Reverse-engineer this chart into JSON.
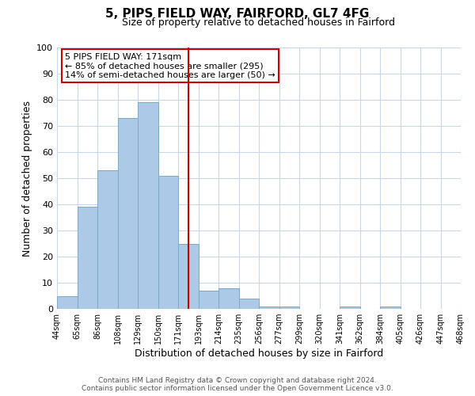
{
  "title": "5, PIPS FIELD WAY, FAIRFORD, GL7 4FG",
  "subtitle": "Size of property relative to detached houses in Fairford",
  "xlabel": "Distribution of detached houses by size in Fairford",
  "ylabel": "Number of detached properties",
  "bin_labels": [
    "44sqm",
    "65sqm",
    "86sqm",
    "108sqm",
    "129sqm",
    "150sqm",
    "171sqm",
    "193sqm",
    "214sqm",
    "235sqm",
    "256sqm",
    "277sqm",
    "299sqm",
    "320sqm",
    "341sqm",
    "362sqm",
    "384sqm",
    "405sqm",
    "426sqm",
    "447sqm",
    "468sqm"
  ],
  "bar_heights": [
    5,
    39,
    53,
    73,
    79,
    51,
    25,
    7,
    8,
    4,
    1,
    1,
    0,
    0,
    1,
    0,
    1,
    0,
    0,
    0
  ],
  "bar_color": "#adc9e8",
  "bar_edge_color": "#7aaac8",
  "vline_color": "#cc0000",
  "vline_position": 6.5,
  "ylim": [
    0,
    100
  ],
  "yticks": [
    0,
    10,
    20,
    30,
    40,
    50,
    60,
    70,
    80,
    90,
    100
  ],
  "annotation_title": "5 PIPS FIELD WAY: 171sqm",
  "annotation_line1": "← 85% of detached houses are smaller (295)",
  "annotation_line2": "14% of semi-detached houses are larger (50) →",
  "annotation_box_color": "#cc0000",
  "footer_line1": "Contains HM Land Registry data © Crown copyright and database right 2024.",
  "footer_line2": "Contains public sector information licensed under the Open Government Licence v3.0.",
  "background_color": "#ffffff",
  "grid_color": "#c8d8e8",
  "title_fontsize": 11,
  "subtitle_fontsize": 9,
  "ylabel_fontsize": 9,
  "xlabel_fontsize": 9,
  "tick_fontsize": 8,
  "annotation_fontsize": 8,
  "footer_fontsize": 6.5
}
